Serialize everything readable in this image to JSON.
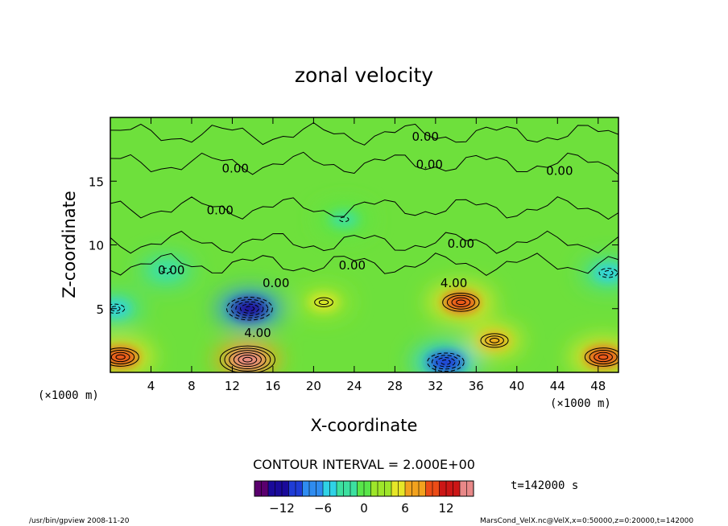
{
  "chart_data": {
    "type": "heatmap",
    "title": "zonal velocity",
    "xlabel": "X-coordinate",
    "ylabel": "Z-coordinate",
    "x_unit": "(×1000 m)",
    "z_unit": "(×1000 m)",
    "xlim": [
      0,
      50
    ],
    "zlim": [
      0,
      20
    ],
    "x_ticks": [
      4,
      8,
      12,
      16,
      20,
      24,
      28,
      32,
      36,
      40,
      44,
      48
    ],
    "z_ticks": [
      5,
      10,
      15
    ],
    "contour_interval_text": "CONTOUR INTERVAL = 2.000E+00",
    "time_text": "t=142000 s",
    "colorbar": {
      "range": [
        -16,
        16
      ],
      "ticks": [
        -12,
        -6,
        0,
        6,
        12
      ],
      "colors": [
        "#5a006e",
        "#1a0a9a",
        "#1f3cd6",
        "#2f8cf0",
        "#2fd2e6",
        "#3ce0a0",
        "#58e64a",
        "#9ee62a",
        "#e6e628",
        "#f2a21e",
        "#ec4c16",
        "#cc1616",
        "#e88888"
      ]
    },
    "contour_labels": [
      {
        "text": "0.00",
        "x": 31,
        "z": 18.5
      },
      {
        "text": "0.00",
        "x": 31.4,
        "z": 16.3
      },
      {
        "text": "0.00",
        "x": 44.2,
        "z": 15.8
      },
      {
        "text": "0.00",
        "x": 12.3,
        "z": 16.0
      },
      {
        "text": "0.00",
        "x": 10.8,
        "z": 12.7
      },
      {
        "text": "0.00",
        "x": 34.5,
        "z": 10.1
      },
      {
        "text": "0.00",
        "x": 23.8,
        "z": 8.4
      },
      {
        "text": "0.00",
        "x": 6.0,
        "z": 8.0
      },
      {
        "text": "0.00",
        "x": 16.3,
        "z": 7.0
      },
      {
        "text": "4.00",
        "x": 33.8,
        "z": 7.0
      },
      {
        "text": "4.00",
        "x": 14.5,
        "z": 3.1
      }
    ],
    "field_features": [
      {
        "x": 13.7,
        "z": 5.0,
        "value": -13
      },
      {
        "x": 13.5,
        "z": 1.0,
        "value": 14
      },
      {
        "x": 34.5,
        "z": 5.5,
        "value": 9
      },
      {
        "x": 33.0,
        "z": 0.8,
        "value": -10
      },
      {
        "x": 1.0,
        "z": 1.2,
        "value": 10
      },
      {
        "x": 0.5,
        "z": 5.0,
        "value": -6
      },
      {
        "x": 48.5,
        "z": 1.2,
        "value": 9
      },
      {
        "x": 49.0,
        "z": 7.8,
        "value": -6
      },
      {
        "x": 21.0,
        "z": 5.5,
        "value": 5
      },
      {
        "x": 37.8,
        "z": 2.5,
        "value": 8
      },
      {
        "x": 23.0,
        "z": 12.0,
        "value": -2
      },
      {
        "x": 5.5,
        "z": 8.0,
        "value": -3
      }
    ]
  },
  "footer": {
    "left": "/usr/bin/gpview  2008-11-20",
    "right": "MarsCond_VelX.nc@VelX,x=0:50000,z=0:20000,t=142000"
  }
}
